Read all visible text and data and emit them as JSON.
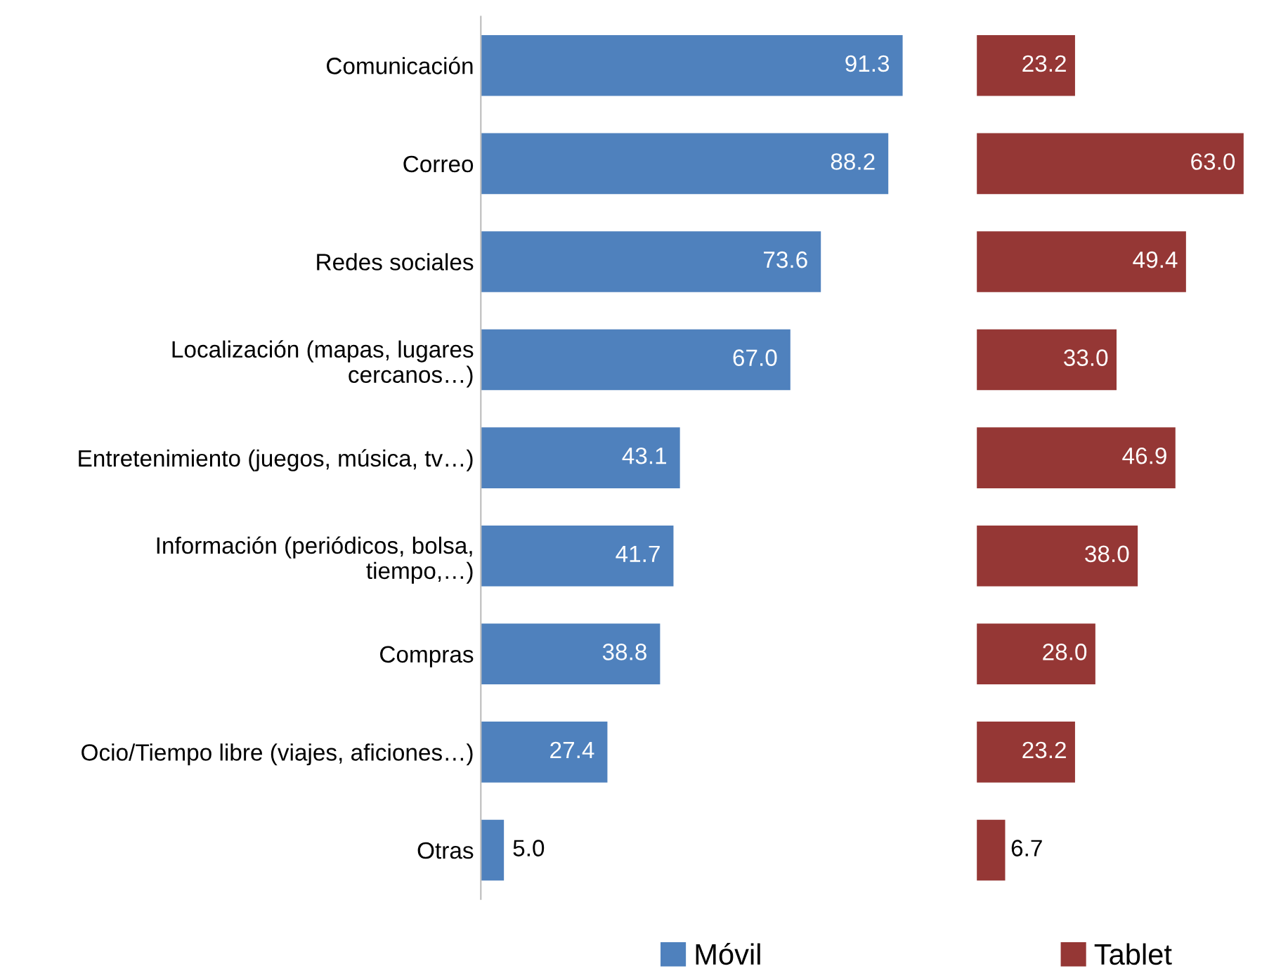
{
  "chart_data": [
    {
      "type": "bar",
      "orientation": "horizontal",
      "categories": [
        "Comunicación",
        "Correo",
        "Redes sociales",
        "Localización (mapas, lugares cercanos…)",
        "Entretenimiento (juegos, música, tv…)",
        "Información (periódicos, bolsa, tiempo,…)",
        "Compras",
        "Ocio/Tiempo libre (viajes, aficiones…)",
        "Otras"
      ],
      "series": [
        {
          "name": "Móvil",
          "color": "#4f81bd",
          "values": [
            91.3,
            88.2,
            73.6,
            67.0,
            43.1,
            41.7,
            38.8,
            27.4,
            5.0
          ],
          "value_labels": [
            "91.3",
            "88.2",
            "73.6",
            "67.0",
            "43.1",
            "41.7",
            "38.8",
            "27.4",
            "5.0"
          ]
        }
      ],
      "tick_labels": "y",
      "legend": "bottom"
    },
    {
      "type": "bar",
      "orientation": "horizontal",
      "categories": [
        null,
        null,
        null,
        null,
        null,
        null,
        null,
        null,
        null
      ],
      "series": [
        {
          "name": "Tablet",
          "color": "#953735",
          "values": [
            23.2,
            63.0,
            49.4,
            33.0,
            46.9,
            38.0,
            28.0,
            23.2,
            6.7
          ],
          "value_labels": [
            "23.2",
            "63.0",
            "49.4",
            "33.0",
            "46.9",
            "38.0",
            "28.0",
            "23.2",
            "6.7"
          ]
        }
      ],
      "tick_labels": false,
      "legend": "bottom"
    }
  ]
}
